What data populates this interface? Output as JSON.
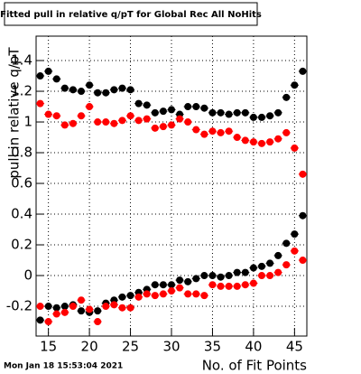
{
  "chart_data": {
    "type": "scatter",
    "title": "Fitted pull in relative q/pT for Global Rec All NoHits",
    "x_label": "No. of Fit Points",
    "y_label": "pull in relative q/pT",
    "timestamp": "Mon Jan 18 15:53:04 2021",
    "x": [
      14,
      15,
      16,
      17,
      18,
      19,
      20,
      21,
      22,
      23,
      24,
      25,
      26,
      27,
      28,
      29,
      30,
      31,
      32,
      33,
      34,
      35,
      36,
      37,
      38,
      39,
      40,
      41,
      42,
      43,
      44,
      45,
      46
    ],
    "series": [
      {
        "color": "#000000",
        "values": [
          1.3,
          1.33,
          1.28,
          1.22,
          1.21,
          1.2,
          1.24,
          1.19,
          1.19,
          1.21,
          1.22,
          1.21,
          1.12,
          1.11,
          1.06,
          1.07,
          1.08,
          1.05,
          1.1,
          1.1,
          1.09,
          1.06,
          1.06,
          1.05,
          1.06,
          1.06,
          1.03,
          1.03,
          1.04,
          1.06,
          1.16,
          1.24,
          1.33
        ]
      },
      {
        "color": "#ff0000",
        "values": [
          1.12,
          1.05,
          1.04,
          0.98,
          0.99,
          1.04,
          1.1,
          1.0,
          1.0,
          0.99,
          1.01,
          1.04,
          1.01,
          1.02,
          0.96,
          0.97,
          0.98,
          1.02,
          1.0,
          0.95,
          0.92,
          0.94,
          0.93,
          0.94,
          0.9,
          0.88,
          0.87,
          0.86,
          0.87,
          0.89,
          0.93,
          0.83,
          0.66
        ]
      },
      {
        "color": "#000000",
        "values": [
          -0.29,
          -0.2,
          -0.21,
          -0.2,
          -0.19,
          -0.23,
          -0.24,
          -0.23,
          -0.18,
          -0.16,
          -0.14,
          -0.13,
          -0.11,
          -0.09,
          -0.06,
          -0.06,
          -0.06,
          -0.03,
          -0.04,
          -0.02,
          0.0,
          0.0,
          -0.01,
          0.0,
          0.02,
          0.02,
          0.05,
          0.06,
          0.08,
          0.13,
          0.21,
          0.27,
          0.39
        ]
      },
      {
        "color": "#ff0000",
        "values": [
          -0.2,
          -0.3,
          -0.25,
          -0.24,
          -0.2,
          -0.16,
          -0.22,
          -0.3,
          -0.2,
          -0.19,
          -0.21,
          -0.21,
          -0.14,
          -0.12,
          -0.13,
          -0.12,
          -0.1,
          -0.08,
          -0.12,
          -0.12,
          -0.13,
          -0.06,
          -0.07,
          -0.07,
          -0.07,
          -0.06,
          -0.05,
          0.0,
          0.0,
          0.02,
          0.07,
          0.16,
          0.1
        ]
      }
    ],
    "xlim": [
      13.5,
      46.5
    ],
    "xticks": [
      15,
      20,
      25,
      30,
      35,
      40,
      45
    ],
    "ylim": [
      -0.394,
      1.559
    ],
    "yticks": [
      -0.2,
      0,
      0.2,
      0.4,
      0.6,
      0.8,
      1,
      1.2,
      1.4
    ],
    "grid": true
  }
}
